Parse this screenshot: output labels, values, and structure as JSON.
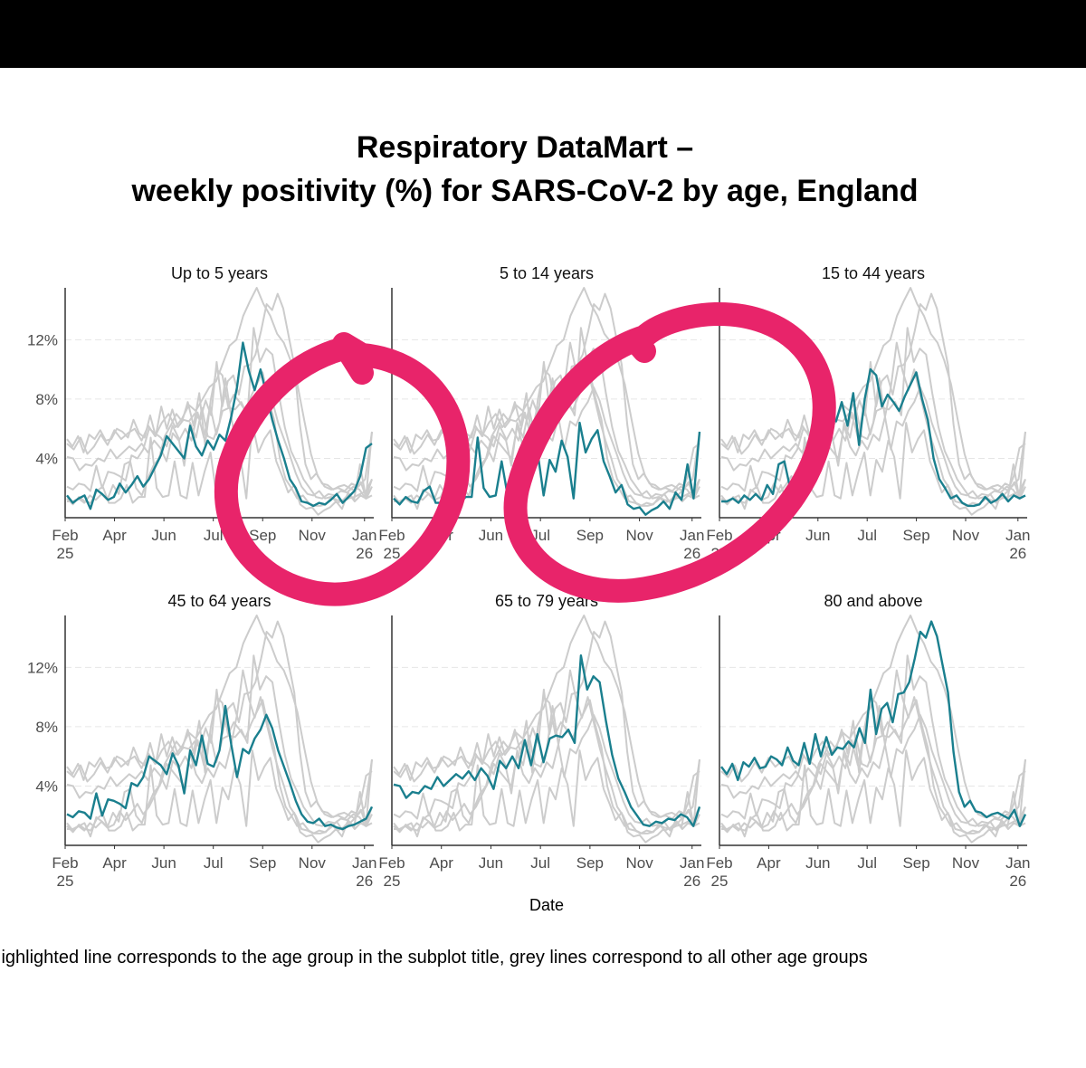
{
  "page": {
    "title_line1": "Respiratory DataMart –",
    "title_line2": "weekly positivity (%) for SARS-CoV-2 by age, England",
    "caption": "Highlighted line corresponds to the age group in the subplot title, grey lines correspond to all other age groups",
    "annotation_color": "#e8246a"
  },
  "chart_data": {
    "type": "line",
    "layout": "small-multiples 2x3",
    "highlight_color": "#1a7f8e",
    "other_color": "#cccccc",
    "xlabel": "Date",
    "ylabel": "",
    "x_ticks": [
      "Feb\n25",
      "Apr",
      "Jun",
      "Jul",
      "Sep",
      "Nov",
      "Jan\n26"
    ],
    "y_ticks": [
      "4%",
      "8%",
      "12%"
    ],
    "y_tick_values": [
      4,
      8,
      12
    ],
    "ylim": [
      0,
      15.5
    ],
    "x_weeks": 51,
    "panel_titles": [
      "Up to 5 years",
      "5 to 14 years",
      "15 to 44 years",
      "45 to 64 years",
      "65 to 79 years",
      "80 and above"
    ],
    "series": [
      {
        "name": "Up to 5 years",
        "values": [
          1.5,
          1.0,
          1.3,
          1.5,
          0.6,
          1.9,
          1.6,
          1.2,
          1.4,
          2.3,
          1.7,
          2.2,
          2.8,
          2.1,
          2.6,
          3.4,
          4.2,
          5.5,
          5.0,
          4.5,
          4.0,
          6.2,
          4.8,
          4.2,
          5.2,
          4.6,
          5.6,
          5.2,
          6.8,
          8.8,
          11.8,
          9.9,
          8.6,
          10.0,
          8.3,
          6.6,
          5.2,
          4.0,
          2.6,
          2.0,
          1.1,
          1.0,
          0.8,
          1.0,
          0.9,
          1.2,
          1.6,
          1.0,
          1.4,
          1.8,
          2.8,
          4.7,
          5.0
        ]
      },
      {
        "name": "5 to 14 years",
        "values": [
          1.3,
          0.9,
          1.4,
          1.1,
          1.0,
          1.8,
          2.1,
          1.0,
          1.0,
          1.3,
          2.2,
          1.0,
          1.4,
          1.4,
          5.4,
          2.0,
          1.4,
          1.5,
          3.8,
          1.5,
          1.3,
          3.7,
          1.5,
          3.1,
          4.4,
          1.5,
          3.9,
          3.1,
          5.2,
          4.1,
          1.3,
          6.4,
          4.4,
          5.3,
          5.9,
          3.8,
          2.8,
          1.7,
          2.2,
          0.9,
          0.6,
          0.7,
          0.2,
          0.5,
          0.7,
          1.1,
          0.6,
          1.7,
          1.2,
          3.6,
          1.3,
          5.8
        ]
      },
      {
        "name": "15 to 44 years",
        "values": [
          1.1,
          1.1,
          1.3,
          1.0,
          1.5,
          1.2,
          1.6,
          1.2,
          2.2,
          1.6,
          3.6,
          3.8,
          2.0,
          1.5,
          2.6,
          3.5,
          4.0,
          5.5,
          6.2,
          7.0,
          6.5,
          7.8,
          6.2,
          8.4,
          4.9,
          8.0,
          10.0,
          9.6,
          7.5,
          8.3,
          7.8,
          7.2,
          8.2,
          9.0,
          9.8,
          8.0,
          6.6,
          4.0,
          2.6,
          2.0,
          1.3,
          1.5,
          1.0,
          0.8,
          0.8,
          0.9,
          1.4,
          1.0,
          1.2,
          1.6,
          1.1,
          1.5,
          1.3,
          1.5
        ]
      },
      {
        "name": "45 to 64 years",
        "values": [
          2.1,
          1.9,
          2.3,
          2.2,
          1.8,
          3.5,
          2.0,
          3.1,
          3.0,
          2.8,
          2.5,
          4.2,
          4.0,
          4.6,
          6.0,
          5.7,
          5.4,
          4.8,
          6.2,
          5.4,
          3.5,
          6.4,
          5.4,
          7.4,
          5.5,
          5.3,
          6.4,
          9.4,
          6.8,
          4.6,
          6.5,
          6.2,
          7.2,
          7.8,
          8.8,
          7.9,
          6.4,
          5.3,
          4.2,
          3.0,
          2.1,
          1.6,
          1.5,
          1.8,
          1.3,
          1.4,
          1.2,
          1.1,
          1.3,
          1.4,
          1.6,
          1.8,
          2.6
        ]
      },
      {
        "name": "65 to 79 years",
        "values": [
          4.1,
          4.0,
          3.2,
          3.6,
          3.5,
          4.0,
          3.8,
          4.6,
          4.0,
          4.4,
          4.8,
          4.5,
          5.0,
          4.4,
          5.2,
          4.7,
          3.8,
          5.7,
          5.2,
          6.0,
          5.2,
          7.1,
          5.4,
          7.5,
          5.6,
          7.2,
          7.4,
          7.3,
          7.8,
          6.9,
          12.8,
          10.5,
          11.4,
          11.0,
          8.4,
          6.1,
          4.5,
          3.6,
          2.6,
          2.0,
          1.4,
          1.3,
          1.6,
          1.5,
          1.8,
          1.7,
          2.1,
          1.9,
          1.3,
          2.6
        ]
      },
      {
        "name": "80 and above",
        "values": [
          5.3,
          4.8,
          5.5,
          4.4,
          5.6,
          5.3,
          5.9,
          5.2,
          5.3,
          6.0,
          5.8,
          5.4,
          6.6,
          5.7,
          5.4,
          6.9,
          5.5,
          7.5,
          6.0,
          7.3,
          6.1,
          6.6,
          6.5,
          7.0,
          6.6,
          7.9,
          6.9,
          10.5,
          7.5,
          9.2,
          9.6,
          8.3,
          10.2,
          10.3,
          11.0,
          12.6,
          14.4,
          14.0,
          15.1,
          14.1,
          12.2,
          10.3,
          6.3,
          3.6,
          2.6,
          3.0,
          2.3,
          2.2,
          1.9,
          2.1,
          2.2,
          2.0,
          1.8,
          2.4,
          1.3,
          2.1
        ]
      },
      {
        "name": "grey-a",
        "values": [
          5.0,
          4.6,
          5.4,
          4.3,
          4.8,
          5.6,
          4.9,
          5.9,
          5.3,
          5.7,
          6.0,
          5.2,
          6.2,
          5.5,
          6.4,
          7.0,
          6.1,
          6.7,
          7.6,
          7.2,
          8.0,
          8.8,
          9.2,
          10.4,
          11.6,
          12.0,
          13.6,
          14.6,
          15.5,
          14.4,
          13.6,
          12.4,
          11.8,
          10.6,
          9.0,
          6.6,
          4.3,
          2.8,
          2.1,
          1.9,
          2.0,
          1.8,
          2.3,
          2.1,
          2.6,
          5.8
        ]
      },
      {
        "name": "grey-b",
        "values": [
          3.6,
          3.0,
          3.9,
          3.2,
          3.5,
          4.3,
          3.6,
          4.7,
          4.4,
          4.9,
          5.4,
          4.1,
          5.8,
          5.1,
          6.4,
          5.6,
          6.7,
          6.0,
          7.4,
          6.6,
          7.1,
          8.0,
          9.2,
          10.1,
          11.1,
          12.4,
          13.5,
          12.1,
          11.1,
          9.9,
          8.4,
          6.4,
          4.5,
          2.9,
          2.2,
          1.7,
          1.5,
          1.4,
          1.6,
          1.3,
          1.5,
          1.8,
          1.7,
          2.2
        ]
      },
      {
        "name": "grey-c",
        "values": [
          1.5,
          1.3,
          1.7,
          1.5,
          2.1,
          1.9,
          2.6,
          2.3,
          3.0,
          3.4,
          3.1,
          3.9,
          3.6,
          4.5,
          4.2,
          5.0,
          5.5,
          4.9,
          6.0,
          6.4,
          6.0,
          7.1,
          7.7,
          8.6,
          9.6,
          10.6,
          11.6,
          13.0,
          12.4,
          11.0,
          9.4,
          7.6,
          5.6,
          4.0,
          3.0,
          2.3,
          1.9,
          1.6,
          1.8,
          1.4,
          1.7,
          1.5,
          1.9,
          2.4
        ]
      },
      {
        "name": "grey-d",
        "values": [
          1.0,
          0.8,
          1.5,
          1.1,
          1.9,
          1.4,
          2.3,
          2.7,
          2.1,
          3.5,
          2.6,
          4.0,
          3.1,
          4.6,
          3.6,
          5.2,
          4.1,
          5.9,
          4.7,
          6.4,
          5.2,
          6.9,
          5.8,
          7.5,
          8.2,
          9.1,
          9.9,
          11.4,
          10.4,
          9.1,
          7.6,
          6.1,
          4.5,
          3.3,
          2.3,
          1.8,
          1.3,
          1.0,
          1.2,
          0.8,
          1.1,
          0.9,
          1.3,
          1.0,
          1.4
        ]
      },
      {
        "name": "grey-e",
        "values": [
          0.7,
          0.5,
          0.9,
          0.6,
          1.2,
          0.8,
          1.6,
          1.1,
          1.9,
          1.4,
          2.2,
          1.7,
          2.6,
          2.1,
          3.0,
          2.5,
          3.3,
          2.9,
          3.9,
          4.4,
          3.6,
          5.0,
          4.4,
          5.9,
          6.6,
          7.6,
          8.4,
          10.0,
          9.0,
          7.6,
          6.0,
          4.6,
          3.4,
          2.4,
          1.7,
          1.2,
          0.8,
          0.5,
          0.7,
          0.4,
          0.6,
          0.4,
          0.8,
          0.6,
          0.9
        ]
      }
    ]
  }
}
